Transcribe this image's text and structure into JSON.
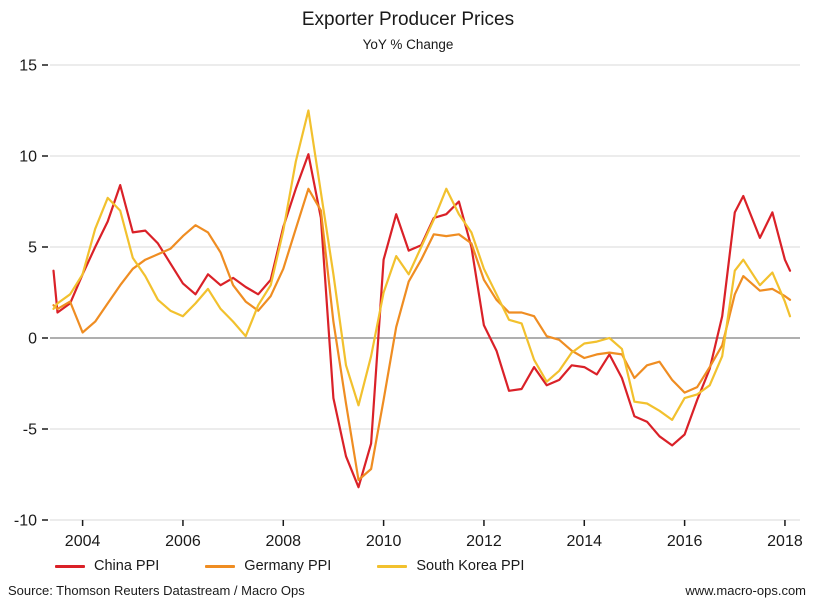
{
  "header": {
    "title": "Exporter Producer Prices",
    "subtitle": "YoY % Change"
  },
  "footer": {
    "source": "Source: Thomson Reuters Datastream / Macro Ops",
    "website": "www.macro-ops.com"
  },
  "chart_data": {
    "type": "line",
    "title": "Exporter Producer Prices",
    "subtitle": "YoY % Change",
    "xlabel": "",
    "ylabel": "",
    "xlim": [
      2003.35,
      2018.3
    ],
    "ylim": [
      -10,
      15
    ],
    "yticks": [
      -10,
      -5,
      0,
      5,
      10,
      15
    ],
    "xticks": [
      2004,
      2006,
      2008,
      2010,
      2012,
      2014,
      2016,
      2018
    ],
    "grid": "horizontal",
    "zero_line": true,
    "legend_position": "bottom",
    "colors": {
      "grid": "#d9d9d9",
      "zero_line": "#7f7f7f",
      "tick": "#1a1a1a",
      "text": "#1a1a1a"
    },
    "x": [
      2003.42,
      2003.5,
      2003.75,
      2004,
      2004.25,
      2004.5,
      2004.75,
      2005,
      2005.25,
      2005.5,
      2005.75,
      2006,
      2006.25,
      2006.5,
      2006.75,
      2007,
      2007.25,
      2007.5,
      2007.75,
      2008,
      2008.25,
      2008.5,
      2008.75,
      2009,
      2009.25,
      2009.5,
      2009.75,
      2010,
      2010.25,
      2010.5,
      2010.75,
      2011,
      2011.25,
      2011.5,
      2011.75,
      2012,
      2012.25,
      2012.5,
      2012.75,
      2013,
      2013.25,
      2013.5,
      2013.75,
      2014,
      2014.25,
      2014.5,
      2014.75,
      2015,
      2015.25,
      2015.5,
      2015.75,
      2016,
      2016.25,
      2016.5,
      2016.75,
      2017,
      2017.17,
      2017.5,
      2017.75,
      2018,
      2018.1
    ],
    "series": [
      {
        "name": "China PPI",
        "color": "#da2128",
        "values": [
          3.7,
          1.4,
          1.9,
          3.5,
          5.0,
          6.4,
          8.4,
          5.8,
          5.9,
          5.2,
          4.1,
          3.0,
          2.4,
          3.5,
          2.9,
          3.3,
          2.8,
          2.4,
          3.2,
          6.1,
          8.2,
          10.1,
          6.6,
          -3.3,
          -6.5,
          -8.2,
          -5.8,
          4.3,
          6.8,
          4.8,
          5.1,
          6.6,
          6.8,
          7.5,
          5.0,
          0.7,
          -0.7,
          -2.9,
          -2.8,
          -1.6,
          -2.6,
          -2.3,
          -1.5,
          -1.6,
          -2.0,
          -0.9,
          -2.2,
          -4.3,
          -4.6,
          -5.4,
          -5.9,
          -5.3,
          -3.4,
          -1.7,
          1.2,
          6.9,
          7.8,
          5.5,
          6.9,
          4.3,
          3.7
        ]
      },
      {
        "name": "Germany PPI",
        "color": "#ef8d22",
        "values": [
          1.8,
          1.6,
          2.0,
          0.3,
          0.9,
          1.9,
          2.9,
          3.8,
          4.3,
          4.6,
          4.9,
          5.6,
          6.2,
          5.8,
          4.7,
          2.9,
          2.0,
          1.5,
          2.3,
          3.8,
          6.0,
          8.2,
          7.0,
          0.9,
          -3.6,
          -7.8,
          -7.2,
          -3.4,
          0.6,
          3.1,
          4.3,
          5.7,
          5.6,
          5.7,
          5.2,
          3.2,
          2.1,
          1.4,
          1.4,
          1.2,
          0.1,
          -0.1,
          -0.7,
          -1.1,
          -0.9,
          -0.8,
          -0.9,
          -2.2,
          -1.5,
          -1.3,
          -2.3,
          -3.0,
          -2.7,
          -1.6,
          -0.4,
          2.4,
          3.4,
          2.6,
          2.7,
          2.3,
          2.1
        ]
      },
      {
        "name": "South Korea PPI",
        "color": "#f2c12e",
        "values": [
          1.6,
          1.9,
          2.4,
          3.5,
          6.0,
          7.7,
          7.0,
          4.4,
          3.4,
          2.1,
          1.5,
          1.2,
          1.9,
          2.7,
          1.6,
          0.9,
          0.1,
          1.8,
          2.9,
          5.9,
          9.7,
          12.5,
          8.0,
          3.5,
          -1.5,
          -3.7,
          -1.0,
          2.5,
          4.5,
          3.5,
          5.0,
          6.5,
          8.2,
          6.8,
          5.8,
          3.8,
          2.4,
          1.0,
          0.8,
          -1.2,
          -2.4,
          -1.8,
          -0.8,
          -0.3,
          -0.2,
          0.0,
          -0.6,
          -3.5,
          -3.6,
          -4.0,
          -4.5,
          -3.3,
          -3.1,
          -2.6,
          -1.0,
          3.7,
          4.3,
          2.9,
          3.6,
          2.0,
          1.2
        ]
      }
    ]
  }
}
